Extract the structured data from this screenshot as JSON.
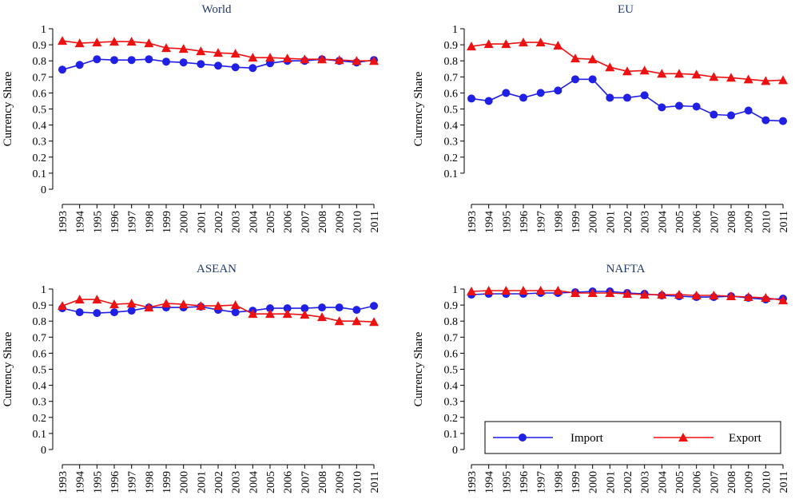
{
  "colors": {
    "import": "#1f1fe6",
    "export": "#ee1111",
    "title": "#1f3a68"
  },
  "chart_data": [
    {
      "type": "line",
      "title": "World",
      "ylabel": "Currency Share",
      "ylim": [
        0,
        1
      ],
      "yticks": [
        "1",
        "0.9",
        "0.8",
        "0.7",
        "0.6",
        "0.5",
        "0.4",
        "0.3",
        "0.2",
        "0.1",
        "0"
      ],
      "categories": [
        "1993",
        "1994",
        "1995",
        "1996",
        "1997",
        "1998",
        "1999",
        "2000",
        "2001",
        "2002",
        "2003",
        "2004",
        "2005",
        "2006",
        "2007",
        "2008",
        "2009",
        "2010",
        "2011"
      ],
      "series": [
        {
          "name": "Import",
          "values": [
            0.745,
            0.775,
            0.81,
            0.805,
            0.805,
            0.81,
            0.795,
            0.79,
            0.78,
            0.77,
            0.76,
            0.755,
            0.785,
            0.8,
            0.8,
            0.81,
            0.8,
            0.79,
            0.805
          ]
        },
        {
          "name": "Export",
          "values": [
            0.925,
            0.91,
            0.915,
            0.92,
            0.92,
            0.91,
            0.88,
            0.875,
            0.86,
            0.85,
            0.845,
            0.82,
            0.82,
            0.815,
            0.81,
            0.81,
            0.805,
            0.8,
            0.8
          ]
        }
      ]
    },
    {
      "type": "line",
      "title": "EU",
      "ylabel": "Currency Share",
      "ylim": [
        0.05,
        1
      ],
      "yticks": [
        "1",
        "0.9",
        "0.8",
        "0.7",
        "0.6",
        "0.5",
        "0.4",
        "0.3",
        "0.2",
        "0.1"
      ],
      "categories": [
        "1993",
        "1994",
        "1995",
        "1996",
        "1997",
        "1998",
        "1999",
        "2000",
        "2001",
        "2002",
        "2003",
        "2004",
        "2005",
        "2006",
        "2007",
        "2008",
        "2009",
        "2010",
        "2011"
      ],
      "series": [
        {
          "name": "Import",
          "values": [
            0.565,
            0.55,
            0.6,
            0.57,
            0.6,
            0.615,
            0.685,
            0.685,
            0.57,
            0.57,
            0.585,
            0.51,
            0.52,
            0.515,
            0.465,
            0.46,
            0.49,
            0.43,
            0.425
          ]
        },
        {
          "name": "Export",
          "values": [
            0.89,
            0.905,
            0.905,
            0.915,
            0.915,
            0.895,
            0.815,
            0.81,
            0.76,
            0.735,
            0.74,
            0.72,
            0.72,
            0.715,
            0.7,
            0.695,
            0.685,
            0.675,
            0.68
          ]
        }
      ]
    },
    {
      "type": "line",
      "title": "ASEAN",
      "ylabel": "Currency Share",
      "ylim": [
        0,
        1
      ],
      "yticks": [
        "1",
        "0.9",
        "0.8",
        "0.7",
        "0.6",
        "0.5",
        "0.4",
        "0.3",
        "0.2",
        "0.1",
        "0"
      ],
      "categories": [
        "1993",
        "1994",
        "1995",
        "1996",
        "1997",
        "1998",
        "1999",
        "2000",
        "2001",
        "2002",
        "2003",
        "2004",
        "2005",
        "2006",
        "2007",
        "2008",
        "2009",
        "2010",
        "2011"
      ],
      "series": [
        {
          "name": "Import",
          "values": [
            0.88,
            0.855,
            0.85,
            0.855,
            0.865,
            0.885,
            0.885,
            0.885,
            0.89,
            0.87,
            0.855,
            0.865,
            0.88,
            0.88,
            0.88,
            0.885,
            0.885,
            0.87,
            0.895
          ]
        },
        {
          "name": "Export",
          "values": [
            0.895,
            0.935,
            0.935,
            0.905,
            0.91,
            0.885,
            0.91,
            0.905,
            0.895,
            0.895,
            0.9,
            0.845,
            0.845,
            0.845,
            0.84,
            0.825,
            0.8,
            0.8,
            0.795
          ]
        }
      ]
    },
    {
      "type": "line",
      "title": "NAFTA",
      "ylabel": "Currency Share",
      "ylim": [
        0,
        1
      ],
      "yticks": [
        "1",
        "0.9",
        "0.8",
        "0.7",
        "0.6",
        "0.5",
        "0.4",
        "0.3",
        "0.2",
        "0.1",
        "0"
      ],
      "categories": [
        "1993",
        "1994",
        "1995",
        "1996",
        "1997",
        "1998",
        "1999",
        "2000",
        "2001",
        "2002",
        "2003",
        "2004",
        "2005",
        "2006",
        "2007",
        "2008",
        "2009",
        "2010",
        "2011"
      ],
      "series": [
        {
          "name": "Import",
          "values": [
            0.965,
            0.97,
            0.97,
            0.97,
            0.975,
            0.975,
            0.98,
            0.985,
            0.985,
            0.975,
            0.97,
            0.96,
            0.955,
            0.95,
            0.95,
            0.955,
            0.945,
            0.935,
            0.94
          ]
        },
        {
          "name": "Export",
          "values": [
            0.985,
            0.99,
            0.99,
            0.99,
            0.99,
            0.99,
            0.975,
            0.975,
            0.975,
            0.97,
            0.965,
            0.965,
            0.965,
            0.96,
            0.96,
            0.955,
            0.95,
            0.945,
            0.93
          ]
        }
      ],
      "legend": {
        "position": "bottom-inside",
        "entries": [
          "Import",
          "Export"
        ]
      }
    }
  ]
}
